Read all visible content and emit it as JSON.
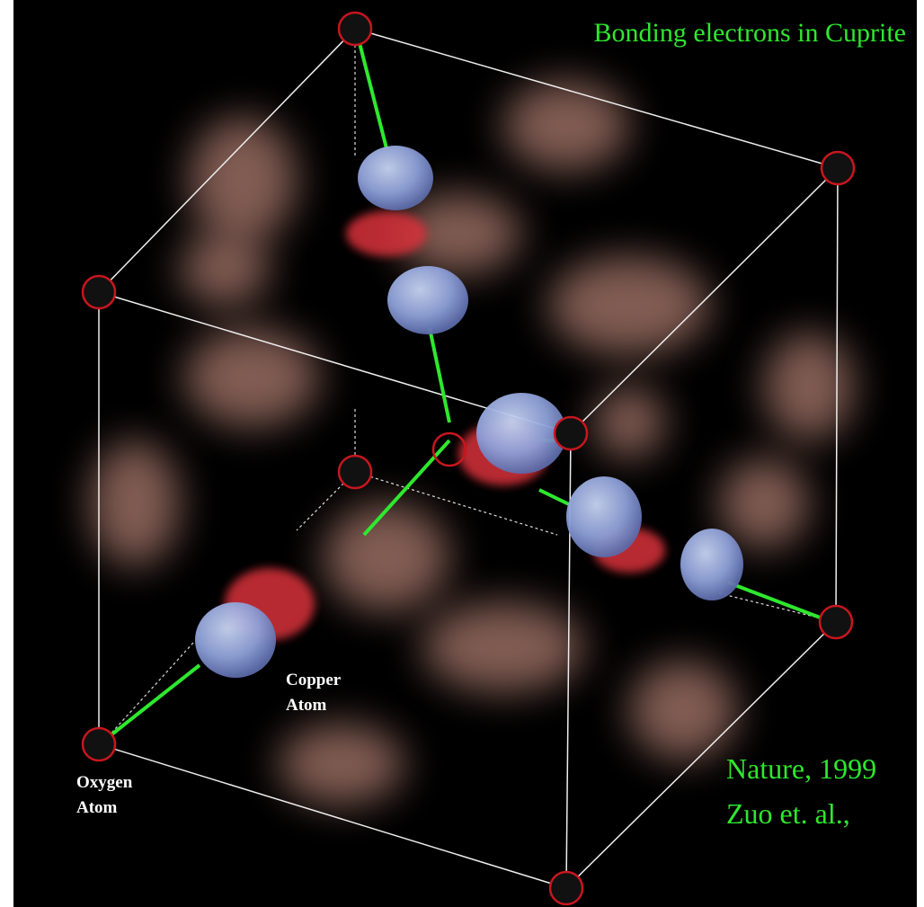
{
  "title": "Bonding electrons in Cuprite",
  "labels": {
    "copper": [
      "Copper",
      "Atom"
    ],
    "oxygen": [
      "Oxygen",
      "Atom"
    ]
  },
  "citation": [
    "Nature, 1999",
    "Zuo et. al.,"
  ]
}
